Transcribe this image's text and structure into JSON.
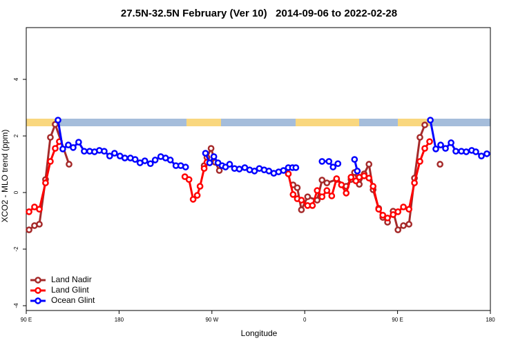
{
  "chart_data": {
    "type": "line",
    "title": "27.5N-32.5N February (Ver 10)   2014-09-06 to 2022-02-28",
    "xlabel": "Longitude",
    "ylabel": "XCO2 - MLO trend (ppm)",
    "xlim": [
      90,
      540
    ],
    "ylim": [
      -4.17,
      5.83
    ],
    "xticks": [
      {
        "value": 90,
        "label": "90 E"
      },
      180,
      {
        "value": 270,
        "label": "90 W"
      },
      {
        "value": 360,
        "label": "0"
      },
      {
        "value": 450,
        "label": "90 E"
      },
      {
        "value": 540,
        "label": "180"
      }
    ],
    "yticks": [
      -4,
      -2,
      0,
      2,
      4
    ],
    "legend": "bottom-left",
    "series": [
      {
        "name": "Land Nadir",
        "color": "#a52a2a",
        "x": [
          92.7,
          98.0,
          102.7,
          108.7,
          113.4,
          118.1,
          131.5,
          null,
          262.5,
          265.2,
          269.2,
          273.2,
          277.2,
          null,
          348.7,
          352.8,
          356.8,
          362.8,
          372.1,
          376.8,
          381.5,
          390.9,
          400.2,
          404.9,
          408.3,
          412.9,
          417.6,
          422.3,
          426.3,
          431.7,
          435.7,
          440.3,
          445.7,
          450.4,
          455.7,
          461.1,
          466.4,
          471.7,
          476.4,
          null,
          491.2
        ],
        "values": [
          -1.32,
          -1.17,
          -1.12,
          0.46,
          1.95,
          2.41,
          1.0,
          null,
          0.95,
          1.24,
          1.56,
          1.07,
          0.78,
          null,
          0.27,
          0.17,
          -0.61,
          -0.15,
          -0.27,
          0.44,
          0.34,
          0.46,
          0.22,
          0.46,
          0.71,
          0.29,
          0.66,
          1.0,
          0.1,
          -0.56,
          -0.88,
          -1.05,
          -0.66,
          -1.32,
          -1.17,
          -1.12,
          0.51,
          1.95,
          2.39,
          null,
          1.0
        ]
      },
      {
        "name": "Land Glint",
        "color": "#ff0000",
        "x": [
          92.7,
          98.0,
          102.7,
          108.7,
          113.4,
          118.1,
          122.1,
          null,
          243.8,
          247.8,
          251.8,
          255.8,
          258.5,
          262.5,
          265.2,
          null,
          344.1,
          348.7,
          352.8,
          356.8,
          362.8,
          367.5,
          372.1,
          376.8,
          381.5,
          386.2,
          390.9,
          395.6,
          400.2,
          404.9,
          409.6,
          412.9,
          417.6,
          422.3,
          426.3,
          431.7,
          435.7,
          440.3,
          445.7,
          450.4,
          455.7,
          461.1,
          466.4,
          471.7,
          476.4,
          481.1
        ],
        "values": [
          -0.68,
          -0.51,
          -0.59,
          0.34,
          1.1,
          1.56,
          1.8,
          null,
          0.56,
          0.46,
          -0.24,
          -0.1,
          0.22,
          0.85,
          1.07,
          null,
          0.66,
          -0.07,
          -0.22,
          -0.27,
          -0.46,
          -0.46,
          0.07,
          -0.15,
          0.07,
          -0.12,
          0.49,
          0.27,
          -0.02,
          0.54,
          0.41,
          0.54,
          0.59,
          0.51,
          0.22,
          -0.59,
          -0.8,
          -0.9,
          -0.78,
          -0.68,
          -0.51,
          -0.59,
          0.34,
          1.1,
          1.56,
          1.8
        ]
      },
      {
        "name": "Ocean Glint",
        "color": "#0000ff",
        "x": [
          120.8,
          125.4,
          130.8,
          135.5,
          140.8,
          146.2,
          151.5,
          156.2,
          160.9,
          165.6,
          170.9,
          175.6,
          180.9,
          185.6,
          191.0,
          195.6,
          200.3,
          205.0,
          210.4,
          215.0,
          220.4,
          225.1,
          229.7,
          235.1,
          239.8,
          244.5,
          null,
          263.8,
          267.8,
          271.9,
          275.9,
          279.9,
          283.2,
          287.2,
          291.9,
          296.6,
          301.9,
          306.6,
          311.3,
          316.0,
          320.7,
          325.3,
          330.0,
          334.7,
          339.4,
          344.1,
          348.1,
          351.4,
          null,
          376.8,
          383.5,
          387.5,
          392.2,
          null,
          408.3,
          411.0,
          null,
          481.8,
          487.1,
          491.8,
          496.5,
          501.9,
          506.5,
          511.9,
          516.6,
          521.9,
          525.9,
          531.3,
          536.6
        ],
        "values": [
          2.56,
          1.54,
          1.68,
          1.59,
          1.78,
          1.46,
          1.46,
          1.44,
          1.49,
          1.46,
          1.29,
          1.39,
          1.29,
          1.22,
          1.22,
          1.17,
          1.05,
          1.12,
          1.02,
          1.15,
          1.27,
          1.22,
          1.15,
          0.95,
          0.95,
          0.9,
          null,
          1.39,
          1.05,
          1.27,
          1.05,
          0.95,
          0.9,
          1.0,
          0.85,
          0.83,
          0.88,
          0.8,
          0.76,
          0.85,
          0.8,
          0.76,
          0.68,
          0.73,
          0.78,
          0.88,
          0.88,
          0.88,
          null,
          1.1,
          1.1,
          0.9,
          1.02,
          null,
          1.17,
          0.76,
          null,
          2.56,
          1.54,
          1.68,
          1.56,
          1.76,
          1.46,
          1.46,
          1.44,
          1.49,
          1.44,
          1.29,
          1.37
        ]
      }
    ]
  }
}
